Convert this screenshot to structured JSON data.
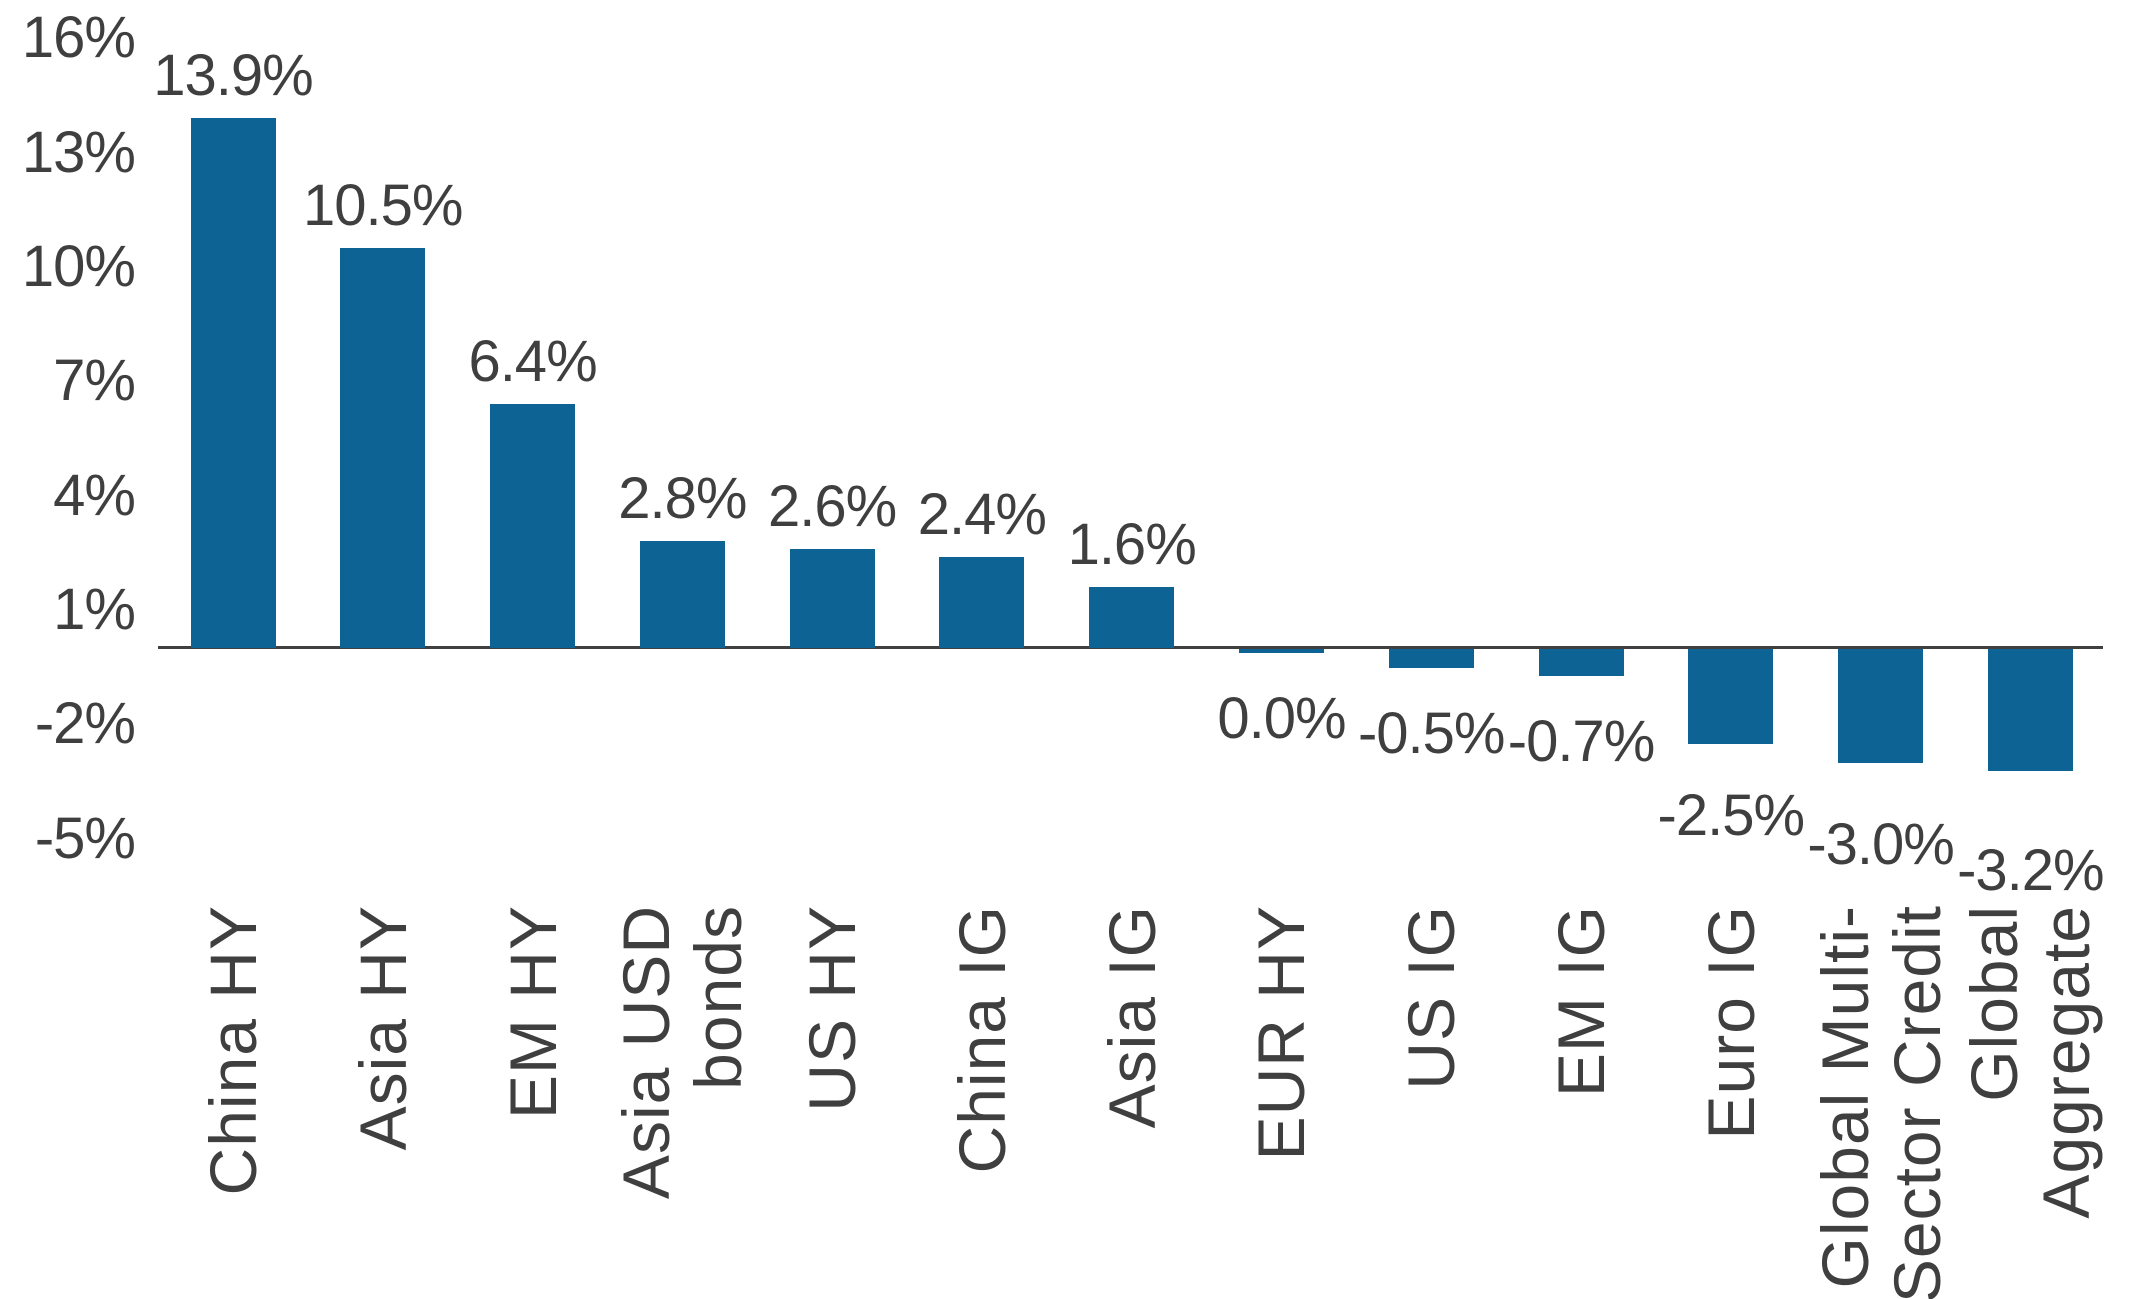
{
  "chart_data": {
    "type": "bar",
    "title": "",
    "xlabel": "",
    "ylabel": "",
    "categories": [
      "China HY",
      "Asia HY",
      "EM HY",
      "Asia USD bonds",
      "US HY",
      "China IG",
      "Asia IG",
      "EUR HY",
      "US IG",
      "EM IG",
      "Euro IG",
      "Global Multi-Sector Credit",
      "Global Aggregate"
    ],
    "category_lines": [
      [
        "China HY"
      ],
      [
        "Asia HY"
      ],
      [
        "EM HY"
      ],
      [
        "Asia USD",
        "bonds"
      ],
      [
        "US HY"
      ],
      [
        "China IG"
      ],
      [
        "Asia IG"
      ],
      [
        "EUR HY"
      ],
      [
        "US IG"
      ],
      [
        "EM IG"
      ],
      [
        "Euro IG"
      ],
      [
        "Global Multi-",
        "Sector Credit"
      ],
      [
        "Global",
        "Aggregate"
      ]
    ],
    "values": [
      13.9,
      10.5,
      6.4,
      2.8,
      2.6,
      2.4,
      1.6,
      0.0,
      -0.5,
      -0.7,
      -2.5,
      -3.0,
      -3.2
    ],
    "value_labels": [
      "13.9%",
      "10.5%",
      "6.4%",
      "2.8%",
      "2.6%",
      "2.4%",
      "1.6%",
      "0.0%",
      "-0.5%",
      "-0.7%",
      "-2.5%",
      "-3.0%",
      "-3.2%"
    ],
    "y_ticks": [
      "16%",
      "13%",
      "10%",
      "7%",
      "4%",
      "1%",
      "-2%",
      "-5%"
    ],
    "y_tick_values": [
      16,
      13,
      10,
      7,
      4,
      1,
      -2,
      -5
    ],
    "ylim": [
      -5,
      16
    ],
    "grid": false,
    "legend": null,
    "bar_color": "#0d6394",
    "text_color": "#3f3f3f",
    "axis_color": "#404040",
    "background_color": "#ffffff"
  }
}
